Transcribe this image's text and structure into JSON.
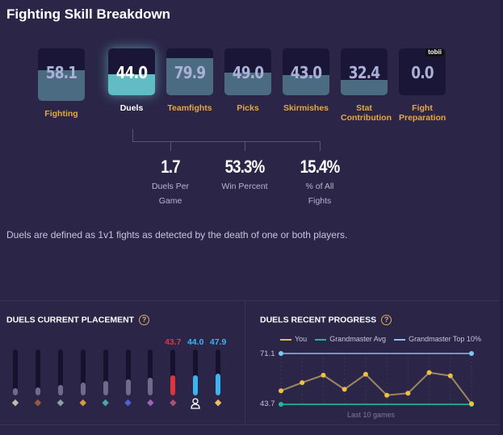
{
  "title": "Fighting Skill Breakdown",
  "skills": [
    {
      "label": "Fighting",
      "value": "58.1",
      "level": 58.1
    },
    {
      "label": "Duels",
      "value": "44.0",
      "level": 44.0,
      "active": true
    },
    {
      "label": "Teamfights",
      "value": "79.9",
      "level": 79.9
    },
    {
      "label": "Picks",
      "value": "49.0",
      "level": 49.0
    },
    {
      "label": "Skirmishes",
      "value": "43.0",
      "level": 43.0
    },
    {
      "label": "Stat Contribution",
      "value": "32.4",
      "level": 32.4
    },
    {
      "label": "Fight Preparation",
      "value": "0.0",
      "level": 0.0,
      "badge": "tobii"
    }
  ],
  "stats": [
    {
      "value": "1.7",
      "label": "Duels Per Game"
    },
    {
      "value": "53.3%",
      "label": "Win Percent"
    },
    {
      "value": "15.4%",
      "label": "% of All Fights"
    }
  ],
  "description": "Duels are defined as 1v1 fights as detected by the death of one or both players.",
  "placement": {
    "title": "DUELS CURRENT PLACEMENT",
    "help": "?",
    "bars": [
      {
        "rank": "iron",
        "level": 15,
        "color": "#6f6a8e",
        "icon_color": "#c8b8a0"
      },
      {
        "rank": "bronze",
        "level": 18,
        "color": "#6f6a8e",
        "icon_color": "#a0583a"
      },
      {
        "rank": "silver",
        "level": 22,
        "color": "#6f6a8e",
        "icon_color": "#8aa0a8"
      },
      {
        "rank": "gold",
        "level": 28,
        "color": "#6f6a8e",
        "icon_color": "#d89a40"
      },
      {
        "rank": "platinum",
        "level": 32,
        "color": "#6f6a8e",
        "icon_color": "#4aa8a0"
      },
      {
        "rank": "diamond",
        "level": 35,
        "color": "#6f6a8e",
        "icon_color": "#5060d8"
      },
      {
        "rank": "master",
        "level": 39,
        "color": "#6f6a8e",
        "icon_color": "#a060c0"
      },
      {
        "rank": "grandmaster",
        "level": 43.7,
        "label": "43.7",
        "color": "#e0343c",
        "label_color": "#e0343c",
        "icon_color": "#b05070"
      },
      {
        "rank": "you",
        "level": 44.0,
        "label": "44.0",
        "color": "#3cb4f0",
        "label_color": "#3cb4f0",
        "icon_color": "#ffffff"
      },
      {
        "rank": "challenger",
        "level": 47.9,
        "label": "47.9",
        "color": "#3cb4f0",
        "label_color": "#3cb4f0",
        "icon_color": "#e8c060"
      }
    ]
  },
  "progress": {
    "title": "DUELS RECENT PROGRESS",
    "help": "?",
    "legend": [
      {
        "name": "You",
        "color": "#e8b84a"
      },
      {
        "name": "Grandmaster Avg",
        "color": "#1fb89a"
      },
      {
        "name": "Grandmaster Top 10%",
        "color": "#7ec8f0"
      }
    ],
    "chart_data": {
      "type": "line",
      "xlabel": "Last 10 games",
      "yticks": [
        "71.1",
        "43.7"
      ],
      "ylim": [
        43.7,
        71.1
      ],
      "series": [
        {
          "name": "You",
          "values": [
            51.0,
            55.4,
            59.4,
            51.8,
            59.9,
            48.6,
            49.7,
            60.8,
            59.1,
            44.0
          ]
        },
        {
          "name": "Grandmaster Avg",
          "values": [
            43.7,
            43.7
          ]
        },
        {
          "name": "Grandmaster Top 10%",
          "values": [
            71.1,
            71.1
          ]
        }
      ]
    }
  }
}
